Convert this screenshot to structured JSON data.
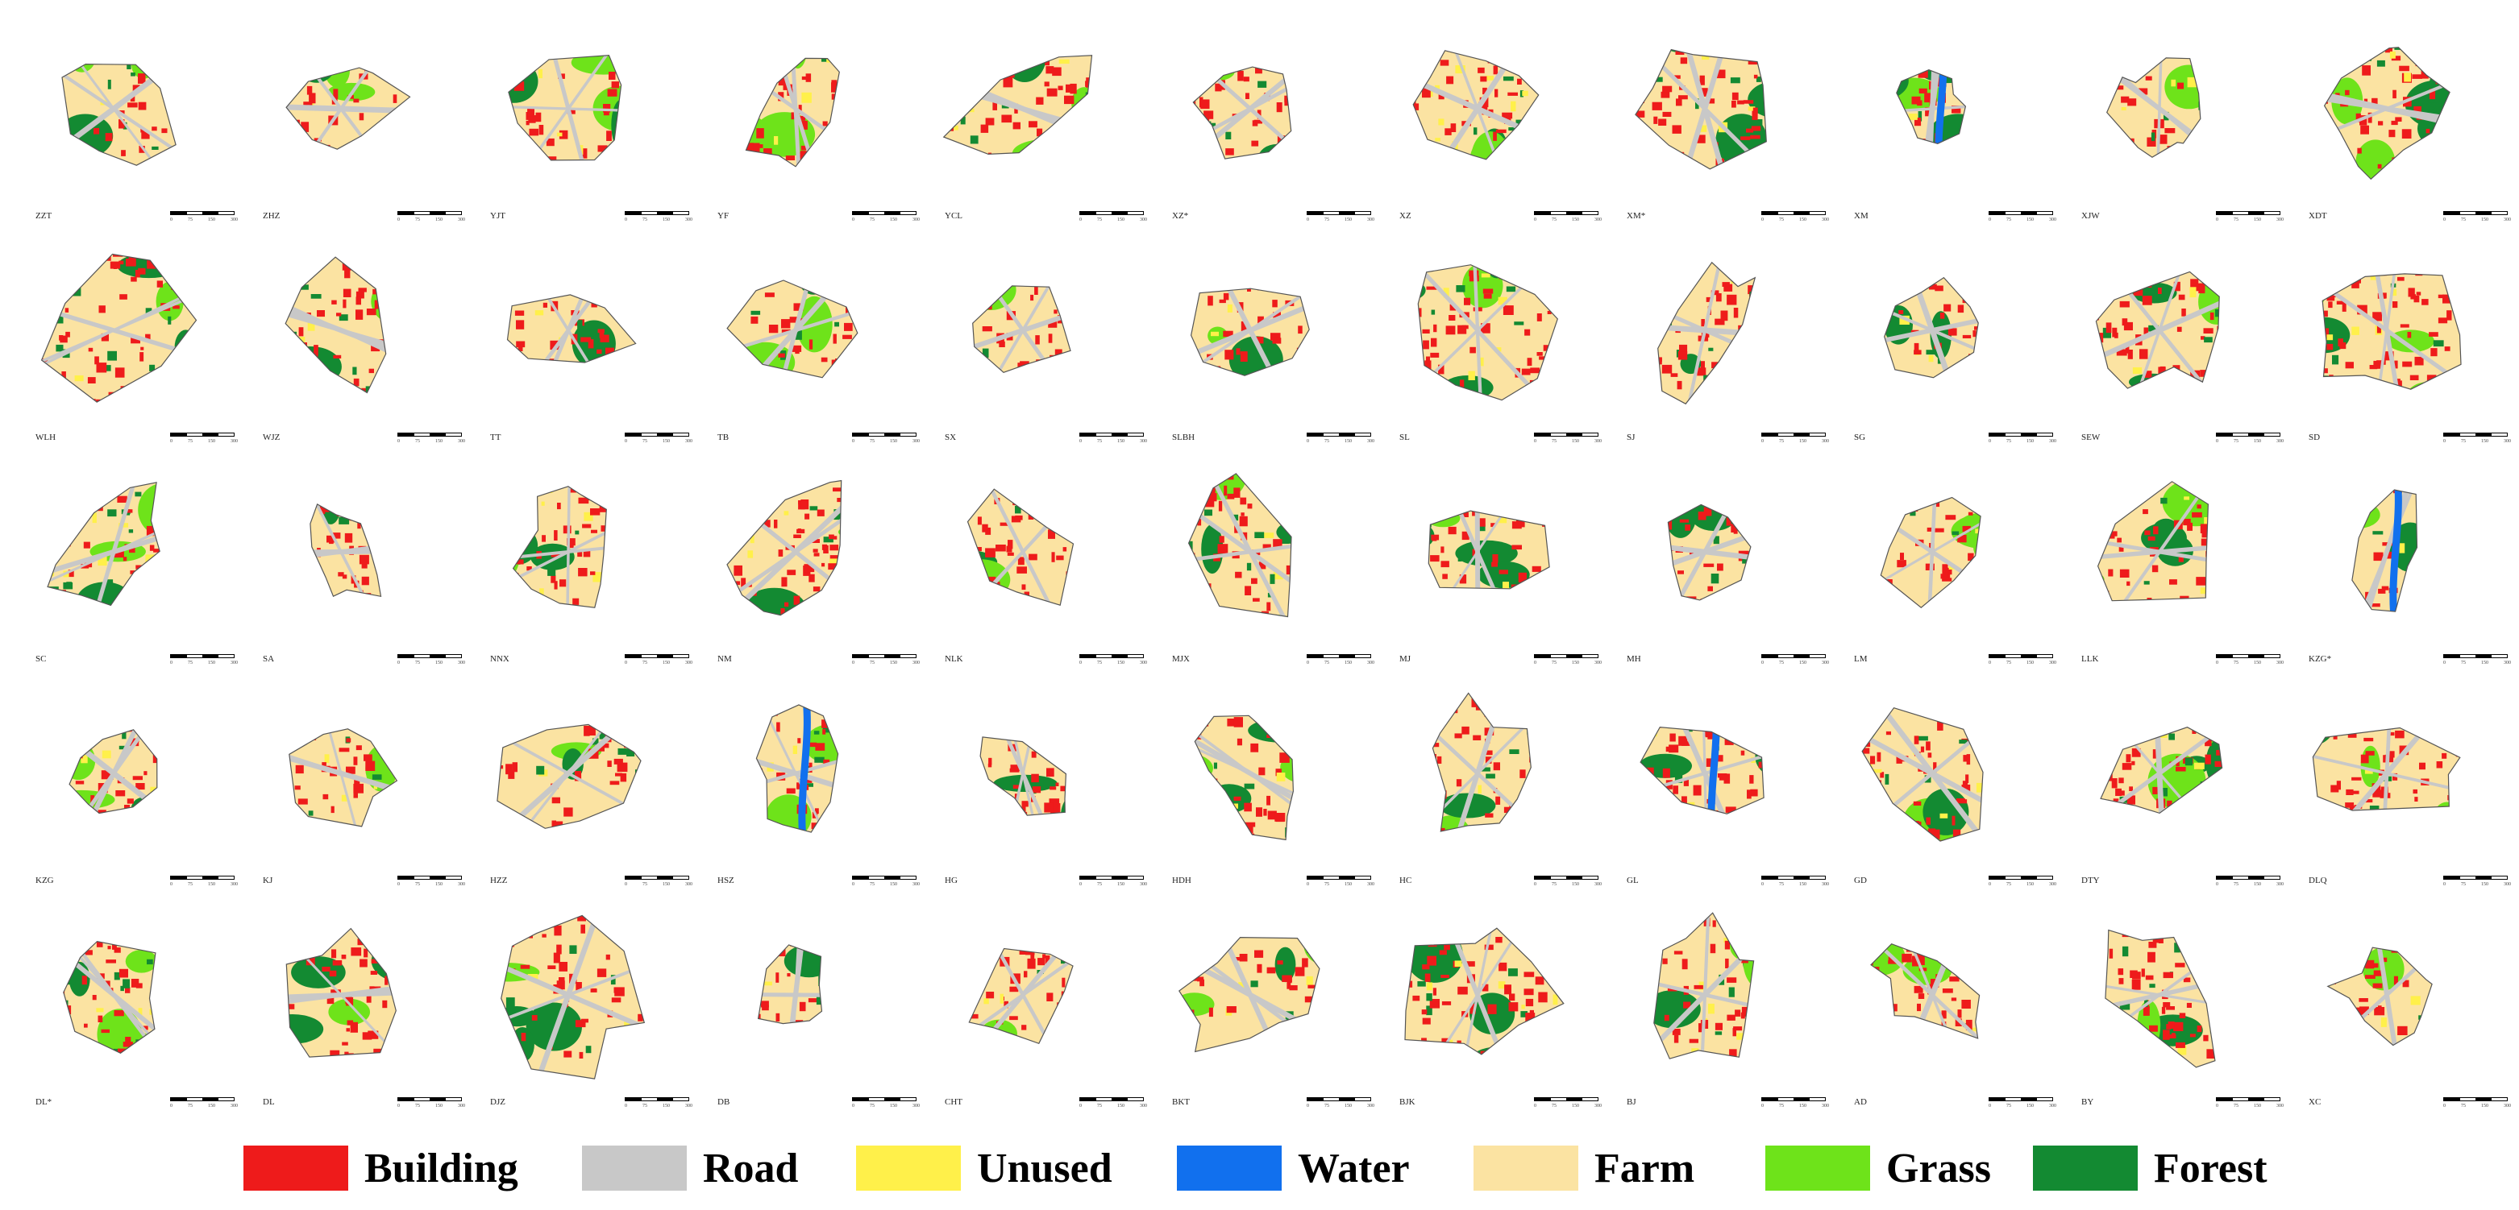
{
  "colors": {
    "building": "#ee1b1b",
    "road": "#c8c8c8",
    "unused": "#fff04a",
    "water": "#1170ee",
    "farm": "#fbe3a2",
    "grass": "#6ee31a",
    "forest": "#138a32",
    "outline": "#555555"
  },
  "legend": [
    {
      "label": "Building",
      "color": "#ee1b1b"
    },
    {
      "label": "Road",
      "color": "#c8c8c8"
    },
    {
      "label": "Unused",
      "color": "#fff04a"
    },
    {
      "label": "Water",
      "color": "#1170ee"
    },
    {
      "label": "Farm",
      "color": "#fbe3a2"
    },
    {
      "label": "Grass",
      "color": "#6ee31a"
    },
    {
      "label": "Forest",
      "color": "#138a32"
    }
  ],
  "scale_ticks": [
    "0",
    "75",
    "150",
    "300"
  ],
  "panels": [
    {
      "code": "ZZT"
    },
    {
      "code": "ZHZ"
    },
    {
      "code": "YJT"
    },
    {
      "code": "YF"
    },
    {
      "code": "YCL"
    },
    {
      "code": "XZ*"
    },
    {
      "code": "XZ"
    },
    {
      "code": "XM*"
    },
    {
      "code": "XM"
    },
    {
      "code": "XJW"
    },
    {
      "code": "XDT"
    },
    {
      "code": "WLH"
    },
    {
      "code": "WJZ"
    },
    {
      "code": "TT"
    },
    {
      "code": "TB"
    },
    {
      "code": "SX"
    },
    {
      "code": "SLBH"
    },
    {
      "code": "SL"
    },
    {
      "code": "SJ"
    },
    {
      "code": "SG"
    },
    {
      "code": "SEW"
    },
    {
      "code": "SD"
    },
    {
      "code": "SC"
    },
    {
      "code": "SA"
    },
    {
      "code": "NNX"
    },
    {
      "code": "NM"
    },
    {
      "code": "NLK"
    },
    {
      "code": "MJX"
    },
    {
      "code": "MJ"
    },
    {
      "code": "MH"
    },
    {
      "code": "LM"
    },
    {
      "code": "LLK"
    },
    {
      "code": "KZG*"
    },
    {
      "code": "KZG"
    },
    {
      "code": "KJ"
    },
    {
      "code": "HZZ"
    },
    {
      "code": "HSZ"
    },
    {
      "code": "HG"
    },
    {
      "code": "HDH"
    },
    {
      "code": "HC"
    },
    {
      "code": "GL"
    },
    {
      "code": "GD"
    },
    {
      "code": "DTY"
    },
    {
      "code": "DLQ"
    },
    {
      "code": "DL*"
    },
    {
      "code": "DL"
    },
    {
      "code": "DJZ"
    },
    {
      "code": "DB"
    },
    {
      "code": "CHT"
    },
    {
      "code": "BKT"
    },
    {
      "code": "BJK"
    },
    {
      "code": "BJ"
    },
    {
      "code": "AD"
    },
    {
      "code": "BY"
    },
    {
      "code": "XC"
    }
  ]
}
